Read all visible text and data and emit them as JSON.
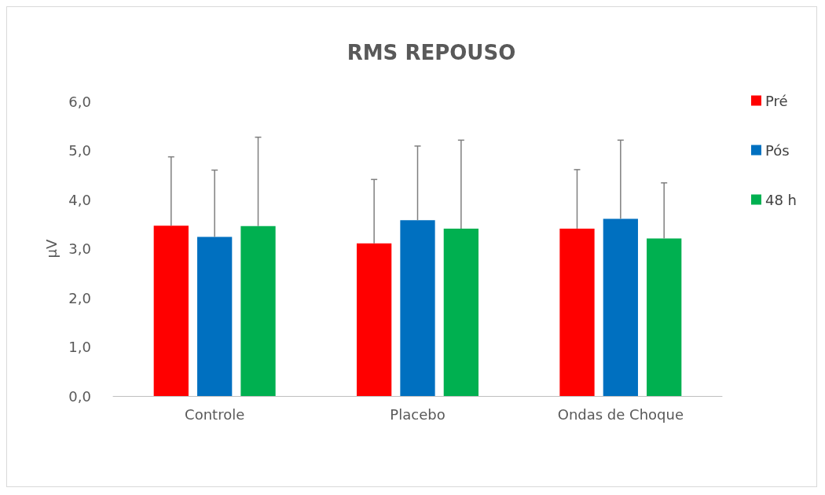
{
  "chart_data": {
    "type": "bar",
    "title": "RMS REPOUSO",
    "ylabel": "µV",
    "categories": [
      "Controle",
      "Placebo",
      "Ondas de Choque"
    ],
    "series": [
      {
        "name": "Pré",
        "color": "#ff0000",
        "values": [
          3.47,
          3.11,
          3.41
        ],
        "errors": [
          [
            3.47,
            4.87
          ],
          [
            3.11,
            4.41
          ],
          [
            3.41,
            4.61
          ]
        ]
      },
      {
        "name": "Pós",
        "color": "#0070c0",
        "values": [
          3.24,
          3.58,
          3.61
        ],
        "errors": [
          [
            3.24,
            4.6
          ],
          [
            3.58,
            5.09
          ],
          [
            3.61,
            5.21
          ]
        ]
      },
      {
        "name": "48 h",
        "color": "#00b050",
        "values": [
          3.46,
          3.41,
          3.21
        ],
        "errors": [
          [
            3.46,
            5.27
          ],
          [
            3.41,
            5.21
          ],
          [
            3.21,
            4.34
          ]
        ]
      }
    ],
    "ylim": [
      0,
      6
    ],
    "yticks": [
      {
        "value": 0,
        "label": "0,0"
      },
      {
        "value": 1,
        "label": "1,0"
      },
      {
        "value": 2,
        "label": "2,0"
      },
      {
        "value": 3,
        "label": "3,0"
      },
      {
        "value": 4,
        "label": "4,0"
      },
      {
        "value": 5,
        "label": "5,0"
      },
      {
        "value": 6,
        "label": "6,0"
      }
    ],
    "grid": false,
    "legend": "right"
  }
}
